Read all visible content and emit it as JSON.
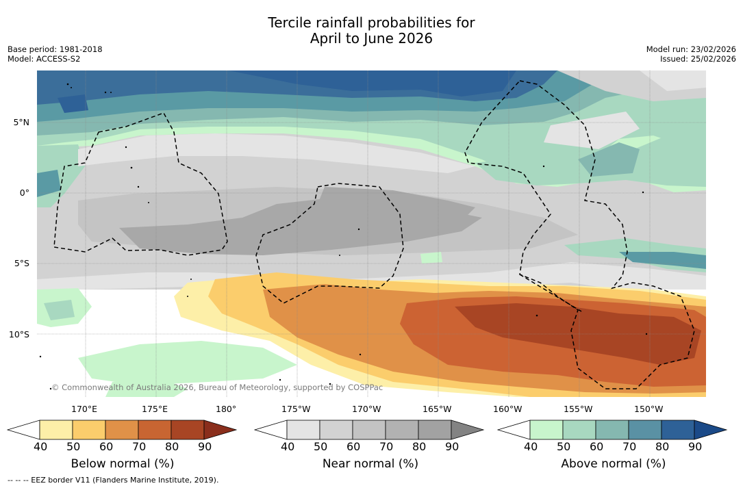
{
  "header": {
    "title_line1": "Tercile rainfall probabilities for",
    "title_line2": "April to June 2026",
    "base_period": "Base period: 1981-2018",
    "model": "Model: ACCESS-S2",
    "model_run": "Model run: 23/02/2026",
    "issued": "Issued: 25/02/2026"
  },
  "map": {
    "lat_labels": [
      "5°N",
      "0°",
      "5°S",
      "10°S"
    ],
    "lon_labels": [
      "170°E",
      "175°E",
      "180°",
      "175°W",
      "170°W",
      "165°W",
      "160°W",
      "155°W",
      "150°W"
    ],
    "copyright": "© Commonwealth of Australia 2026, Bureau of Meteorology, supported by COSPPac",
    "colors": {
      "ocean_blue_dark": "#2e6197",
      "ocean_blue": "#3b6e9a",
      "teal_dark": "#5a9aa4",
      "teal": "#85b8b0",
      "green_light": "#a8d8c0",
      "green_pale": "#c8f5cc",
      "grey_light": "#e4e4e4",
      "grey_mid": "#d2d2d2",
      "grey": "#c4c4c4",
      "grey_dark": "#a8a8a8",
      "yellow_pale": "#fdefa8",
      "yellow": "#fbcd6c",
      "orange": "#e09148",
      "orange_dark": "#cc6333",
      "brown": "#a84524"
    }
  },
  "legends": {
    "below": {
      "title": "Below normal (%)",
      "ticks": [
        "40",
        "50",
        "60",
        "70",
        "80",
        "90"
      ],
      "colors": [
        "#ffffff",
        "#fdefa8",
        "#fbcd6c",
        "#e09148",
        "#c86532",
        "#a84524",
        "#8a2e1c"
      ]
    },
    "near": {
      "title": "Near normal (%)",
      "ticks": [
        "40",
        "50",
        "60",
        "70",
        "80",
        "90"
      ],
      "colors": [
        "#ffffff",
        "#e4e4e4",
        "#d2d2d2",
        "#c3c3c3",
        "#b2b2b2",
        "#a2a2a2",
        "#838383"
      ]
    },
    "above": {
      "title": "Above normal (%)",
      "ticks": [
        "40",
        "50",
        "60",
        "70",
        "80",
        "90"
      ],
      "colors": [
        "#ffffff",
        "#c8f5cc",
        "#a8d8c0",
        "#85b8b0",
        "#5a91a4",
        "#2e6197",
        "#1b4a88"
      ]
    }
  },
  "footnote": "-- -- -- EEZ border V11 (Flanders Marine Institute, 2019)."
}
